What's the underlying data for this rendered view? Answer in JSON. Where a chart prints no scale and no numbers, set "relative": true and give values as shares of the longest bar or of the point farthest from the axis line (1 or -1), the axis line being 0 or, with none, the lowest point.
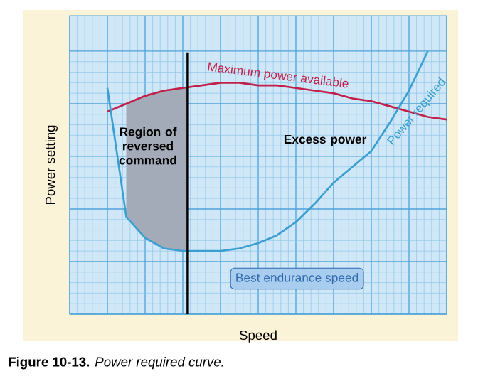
{
  "chart_data": {
    "type": "line",
    "relative": true,
    "xlabel": "Speed",
    "ylabel": "Power setting",
    "categories": [
      null,
      null,
      null,
      null,
      null,
      null,
      null,
      null,
      null,
      null,
      null,
      null,
      null,
      null,
      null,
      null,
      null,
      null,
      null,
      null,
      null
    ],
    "series": [
      {
        "name": "Maximum power available",
        "color": "#c0204a",
        "values": [
          null,
          null,
          0.77,
          0.8,
          0.83,
          0.85,
          0.86,
          0.87,
          0.88,
          0.88,
          0.87,
          0.87,
          0.86,
          0.85,
          0.84,
          0.82,
          0.81,
          0.79,
          0.77,
          0.75,
          0.74
        ]
      },
      {
        "name": "Power required",
        "color": "#3a9fd0",
        "values": [
          null,
          null,
          0.86,
          0.37,
          0.29,
          0.25,
          0.24,
          0.24,
          0.24,
          0.25,
          0.27,
          0.3,
          0.35,
          0.42,
          0.5,
          0.56,
          0.62,
          0.73,
          0.85,
          1.0,
          null
        ]
      }
    ],
    "grid": true,
    "annotations": [
      "Region of reversed command",
      "Excess power",
      "Best endurance speed",
      "**Figure 10-13.** *Power required curve.*"
    ]
  }
}
